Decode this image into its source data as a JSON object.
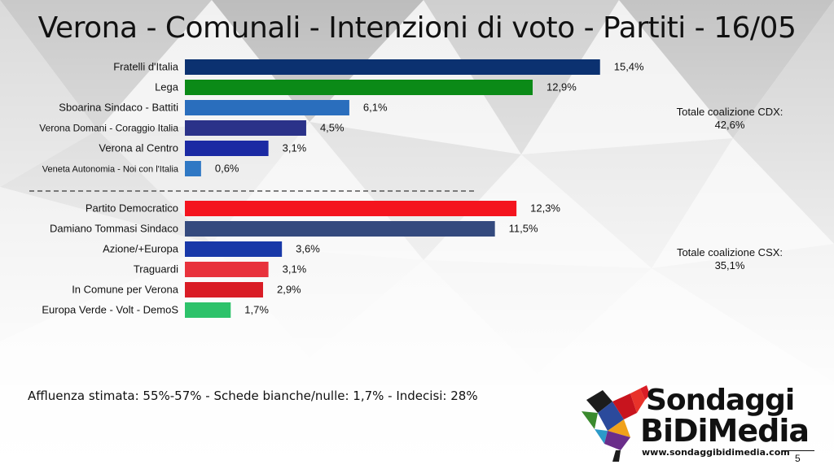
{
  "chart_data": {
    "type": "bar",
    "orientation": "horizontal",
    "title": "Verona - Comunali - Intenzioni di voto - Partiti - 16/05",
    "unit": "%",
    "xlim": [
      0,
      16
    ],
    "grid": false,
    "groups": [
      {
        "name": "CDX",
        "total_label": "Totale coalizione CDX:",
        "total_value": "42,6%",
        "categories": [
          "Fratelli d'Italia",
          "Lega",
          "Sboarina Sindaco - Battiti",
          "Verona Domani - Coraggio Italia",
          "Verona al Centro",
          "Veneta Autonomia - Noi con l'Italia"
        ],
        "values": [
          15.4,
          12.9,
          6.1,
          4.5,
          3.1,
          0.6
        ],
        "value_labels": [
          "15,4%",
          "12,9%",
          "6,1%",
          "4,5%",
          "3,1%",
          "0,6%"
        ],
        "colors": [
          "#0b3170",
          "#0b8a17",
          "#2a6ebd",
          "#2b3289",
          "#1b2aa3",
          "#2f78c4"
        ]
      },
      {
        "name": "CSX",
        "total_label": "Totale coalizione CSX:",
        "total_value": "35,1%",
        "categories": [
          "Partito Democratico",
          "Damiano Tommasi Sindaco",
          "Azione/+Europa",
          "Traguardi",
          "In Comune per Verona",
          "Europa Verde - Volt - DemoS"
        ],
        "values": [
          12.3,
          11.5,
          3.6,
          3.1,
          2.9,
          1.7
        ],
        "value_labels": [
          "12,3%",
          "11,5%",
          "3,6%",
          "3,1%",
          "2,9%",
          "1,7%"
        ],
        "colors": [
          "#f4141e",
          "#344a7e",
          "#1838a8",
          "#e8323c",
          "#d91c25",
          "#2dc26a"
        ]
      }
    ]
  },
  "footer": {
    "note": "Affluenza stimata: 55%-57% - Schede bianche/nulle: 1,7% - Indecisi: 28%"
  },
  "branding": {
    "line1": "Sondaggi",
    "line2": "BiDiMedia",
    "url": "www.sondaggibidimedia.com",
    "page_number": "5",
    "icon": "rooster-icon"
  }
}
